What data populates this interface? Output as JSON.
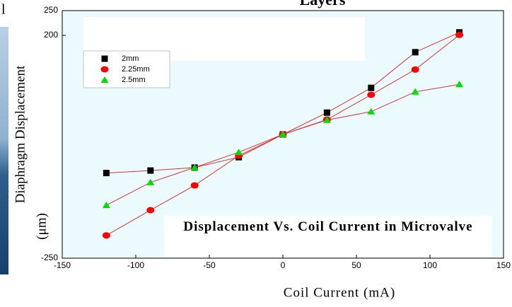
{
  "chart_data": {
    "type": "line",
    "title": "Layers",
    "edge_text": "l",
    "y_label": "Diaphragm Displacement",
    "y_unit": "(μm)",
    "x_label": "Coil Current (mA)",
    "annotation": "Displacement Vs. Coil Current  in Microvalve",
    "x": [
      -120,
      -90,
      -60,
      -30,
      0,
      30,
      60,
      90,
      120
    ],
    "series": [
      {
        "name": "2mm",
        "color": "#000000",
        "marker": "square",
        "values": [
          -78,
          -73,
          -67,
          -46,
          0,
          44,
          94,
          166,
          206
        ]
      },
      {
        "name": "2.25mm",
        "color": "#ff0000",
        "marker": "circle",
        "values": [
          -204,
          -153,
          -103,
          -43,
          0,
          30,
          80,
          131,
          201
        ]
      },
      {
        "name": "2.5mm",
        "color": "#00dd00",
        "marker": "triangle",
        "values": [
          -143,
          -97,
          -67,
          -36,
          0,
          29,
          46,
          86,
          101
        ]
      }
    ],
    "line_color": "#dd3333",
    "xlim": [
      -150,
      150
    ],
    "xticks": [
      -150,
      -100,
      -50,
      0,
      50,
      100,
      150
    ],
    "ylim": [
      -250,
      250
    ],
    "yticks": [
      -250,
      200,
      250
    ],
    "grid": false
  }
}
